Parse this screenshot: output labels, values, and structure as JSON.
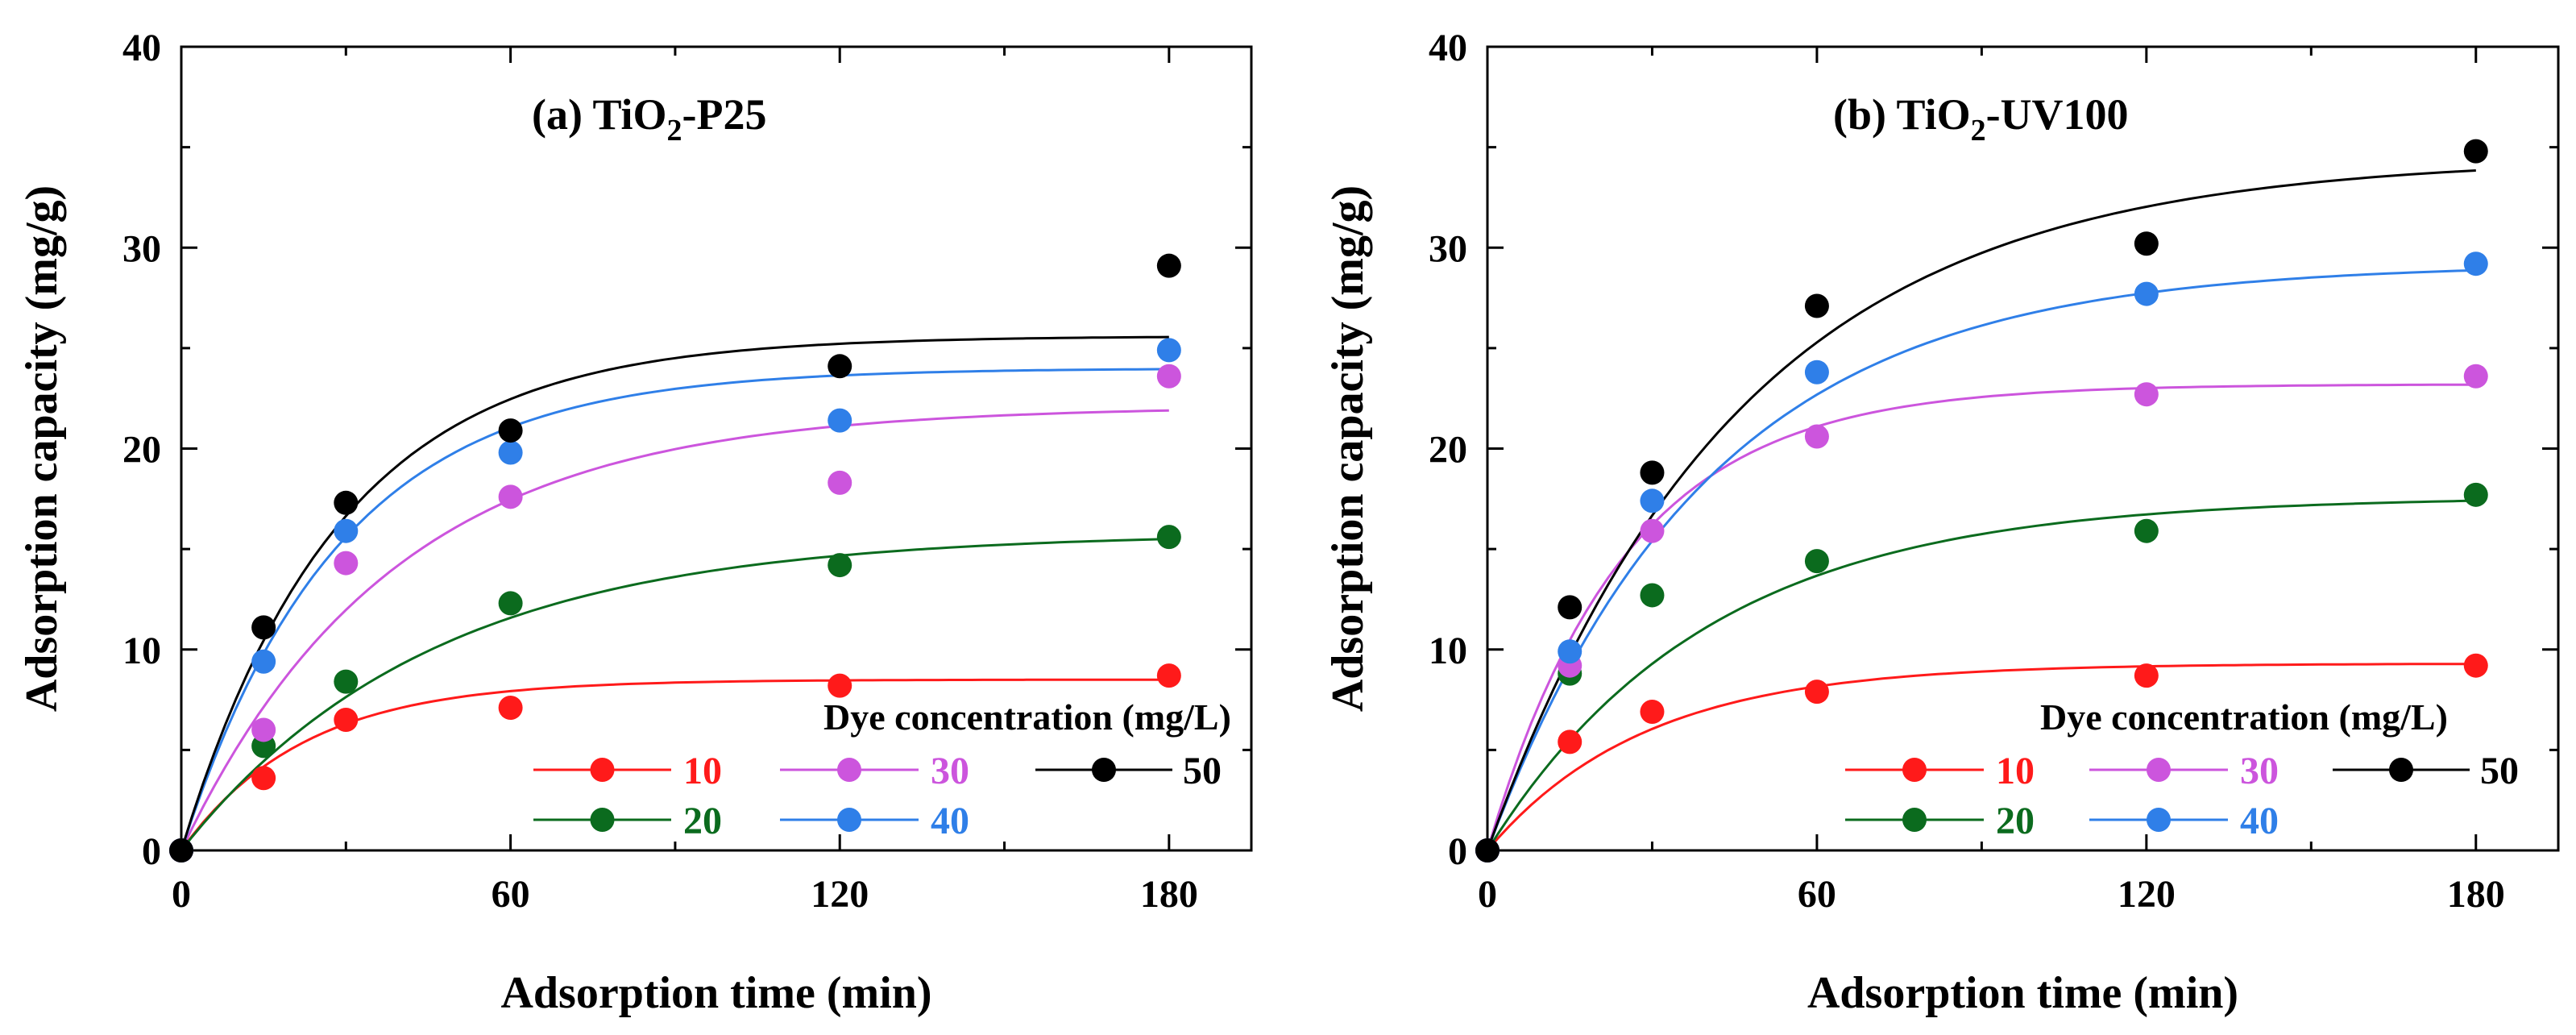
{
  "chart_data": [
    {
      "type": "scatter",
      "panel_id": "a",
      "title": {
        "prefix": "(a) TiO",
        "sub": "2",
        "suffix": "-P25"
      },
      "xlabel": "Adsorption time (min)",
      "ylabel": "Adsorption capacity (mg/g)",
      "xlim": [
        0,
        195
      ],
      "ylim": [
        0,
        40
      ],
      "xticks": [
        0,
        60,
        120,
        180
      ],
      "yticks": [
        0,
        10,
        20,
        30,
        40
      ],
      "grid": false,
      "legend": {
        "title": "Dye concentration (mg/L)",
        "position": "bottom-right"
      },
      "x": [
        0,
        15,
        30,
        60,
        120,
        180
      ],
      "series": [
        {
          "name": "10",
          "color": "#ff1a1a",
          "values": [
            0,
            3.6,
            6.5,
            7.1,
            8.2,
            8.7
          ],
          "fit_qe": 8.5,
          "fit_k": 0.045
        },
        {
          "name": "20",
          "color": "#0b6b1e",
          "values": [
            0,
            5.2,
            8.4,
            12.3,
            14.2,
            15.6
          ],
          "fit_qe": 15.8,
          "fit_k": 0.022
        },
        {
          "name": "30",
          "color": "#cc55dd",
          "values": [
            0,
            6.0,
            14.3,
            17.6,
            18.3,
            23.6
          ],
          "fit_qe": 22.1,
          "fit_k": 0.026
        },
        {
          "name": "40",
          "color": "#2f7fe8",
          "values": [
            0,
            9.4,
            15.9,
            19.8,
            21.4,
            24.9
          ],
          "fit_qe": 24.0,
          "fit_k": 0.035
        },
        {
          "name": "50",
          "color": "#000000",
          "values": [
            0,
            11.1,
            17.3,
            20.9,
            24.1,
            29.1
          ],
          "fit_qe": 25.6,
          "fit_k": 0.035
        }
      ]
    },
    {
      "type": "scatter",
      "panel_id": "b",
      "title": {
        "prefix": "(b) TiO",
        "sub": "2",
        "suffix": "-UV100"
      },
      "xlabel": "Adsorption time (min)",
      "ylabel": "Adsorption capacity (mg/g)",
      "xlim": [
        0,
        195
      ],
      "ylim": [
        0,
        40
      ],
      "xticks": [
        0,
        60,
        120,
        180
      ],
      "yticks": [
        0,
        10,
        20,
        30,
        40
      ],
      "grid": false,
      "legend": {
        "title": "Dye concentration (mg/L)",
        "position": "bottom-right"
      },
      "x": [
        0,
        15,
        30,
        60,
        120,
        180
      ],
      "series": [
        {
          "name": "10",
          "color": "#ff1a1a",
          "values": [
            0,
            5.4,
            6.9,
            7.9,
            8.7,
            9.2
          ],
          "fit_qe": 9.3,
          "fit_k": 0.035
        },
        {
          "name": "20",
          "color": "#0b6b1e",
          "values": [
            0,
            8.8,
            12.7,
            14.4,
            15.9,
            17.7
          ],
          "fit_qe": 17.6,
          "fit_k": 0.025
        },
        {
          "name": "30",
          "color": "#cc55dd",
          "values": [
            0,
            9.2,
            15.9,
            20.6,
            22.7,
            23.6
          ],
          "fit_qe": 23.2,
          "fit_k": 0.04
        },
        {
          "name": "40",
          "color": "#2f7fe8",
          "values": [
            0,
            9.9,
            17.4,
            23.8,
            27.7,
            29.2
          ],
          "fit_qe": 29.2,
          "fit_k": 0.025
        },
        {
          "name": "50",
          "color": "#000000",
          "values": [
            0,
            12.1,
            18.8,
            27.1,
            30.2,
            34.8
          ],
          "fit_qe": 34.5,
          "fit_k": 0.022
        }
      ]
    }
  ]
}
